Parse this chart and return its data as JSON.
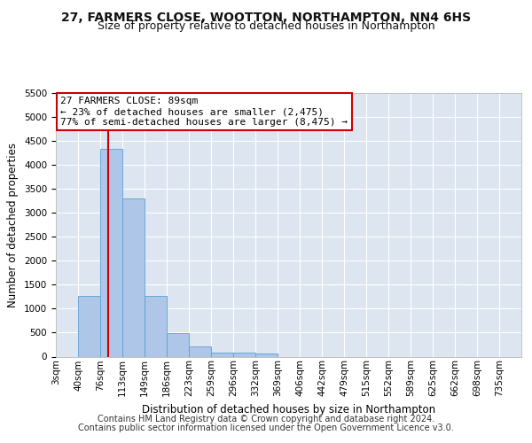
{
  "title_line1": "27, FARMERS CLOSE, WOOTTON, NORTHAMPTON, NN4 6HS",
  "title_line2": "Size of property relative to detached houses in Northampton",
  "xlabel": "Distribution of detached houses by size in Northampton",
  "ylabel": "Number of detached properties",
  "bar_labels": [
    "3sqm",
    "40sqm",
    "76sqm",
    "113sqm",
    "149sqm",
    "186sqm",
    "223sqm",
    "259sqm",
    "296sqm",
    "332sqm",
    "369sqm",
    "406sqm",
    "442sqm",
    "479sqm",
    "515sqm",
    "552sqm",
    "589sqm",
    "625sqm",
    "662sqm",
    "698sqm",
    "735sqm"
  ],
  "bar_values": [
    0,
    1260,
    4330,
    3300,
    1270,
    490,
    220,
    90,
    75,
    60,
    0,
    0,
    0,
    0,
    0,
    0,
    0,
    0,
    0,
    0,
    0
  ],
  "bar_color": "#aec6e8",
  "bar_edge_color": "#5a9fd4",
  "vline_color": "#cc0000",
  "annotation_text": "27 FARMERS CLOSE: 89sqm\n← 23% of detached houses are smaller (2,475)\n77% of semi-detached houses are larger (8,475) →",
  "annotation_box_color": "#ffffff",
  "annotation_box_edge": "#cc0000",
  "ylim": [
    0,
    5500
  ],
  "yticks": [
    0,
    500,
    1000,
    1500,
    2000,
    2500,
    3000,
    3500,
    4000,
    4500,
    5000,
    5500
  ],
  "background_color": "#dde6f0",
  "grid_color": "#ffffff",
  "footer_line1": "Contains HM Land Registry data © Crown copyright and database right 2024.",
  "footer_line2": "Contains public sector information licensed under the Open Government Licence v3.0.",
  "title_fontsize": 10,
  "subtitle_fontsize": 9,
  "axis_label_fontsize": 8.5,
  "tick_fontsize": 7.5,
  "annotation_fontsize": 8,
  "footer_fontsize": 7
}
